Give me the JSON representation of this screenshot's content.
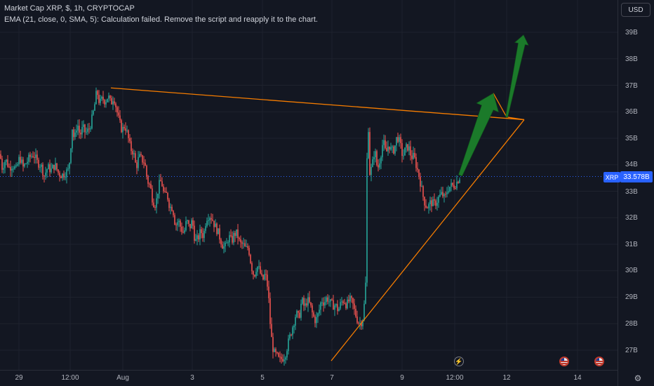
{
  "header": {
    "title": "Market Cap XRP, $, 1h, CRYPTOCAP",
    "indicator": "EMA (21, close, 0, SMA, 5): Calculation failed. Remove the script and reapply it to the chart."
  },
  "price_axis": {
    "currency": "USD",
    "ticks": [
      "39B",
      "38B",
      "37B",
      "36B",
      "35B",
      "34B",
      "33B",
      "32B",
      "31B",
      "30B",
      "29B",
      "28B",
      "27B"
    ],
    "symbol": "XRP",
    "last_price": "33.578B"
  },
  "time_axis": {
    "ticks": [
      "29",
      "12:00",
      "Aug",
      "3",
      "5",
      "7",
      "9",
      "12:00",
      "12",
      "14"
    ]
  },
  "icons": [
    "bolt-icon",
    "us-flag-icon",
    "us-flag-icon",
    "settings-icon"
  ],
  "colors": {
    "background": "#131722",
    "up_candle": "#26a69a",
    "down_candle": "#ef5350",
    "trendline": "#f57c00",
    "projection_arrow": "#1b7a2a",
    "price_tag": "#2962ff"
  },
  "chart_data": {
    "type": "candlestick",
    "title": "Market Cap XRP, $, 1h, CRYPTOCAP",
    "ylim": [
      26.6,
      39.6
    ],
    "y_unit": "B",
    "yticks": [
      27,
      28,
      29,
      30,
      31,
      32,
      33,
      34,
      35,
      36,
      37,
      38,
      39
    ],
    "xticks": [
      "29",
      "12:00",
      "Aug",
      "3",
      "5",
      "7",
      "9",
      "12:00",
      "12",
      "14"
    ],
    "last_price": 33.578,
    "price_path": [
      [
        0,
        34.4
      ],
      [
        3,
        33.9
      ],
      [
        8,
        34.2
      ],
      [
        13,
        33.9
      ],
      [
        18,
        34.0
      ],
      [
        23,
        33.8
      ],
      [
        28,
        34.3
      ],
      [
        33,
        33.9
      ],
      [
        38,
        34.1
      ],
      [
        43,
        34.3
      ],
      [
        48,
        34.4
      ],
      [
        53,
        34.1
      ],
      [
        58,
        34.0
      ],
      [
        63,
        33.6
      ],
      [
        68,
        33.9
      ],
      [
        73,
        33.8
      ],
      [
        78,
        34.0
      ],
      [
        83,
        33.7
      ],
      [
        88,
        33.6
      ],
      [
        93,
        33.7
      ],
      [
        98,
        33.8
      ],
      [
        103,
        35.4
      ],
      [
        106,
        34.9
      ],
      [
        110,
        35.6
      ],
      [
        114,
        35.1
      ],
      [
        118,
        35.4
      ],
      [
        122,
        35.2
      ],
      [
        126,
        35.3
      ],
      [
        130,
        35.6
      ],
      [
        134,
        36.1
      ],
      [
        138,
        36.8
      ],
      [
        142,
        36.3
      ],
      [
        146,
        36.5
      ],
      [
        150,
        36.4
      ],
      [
        154,
        36.6
      ],
      [
        158,
        36.3
      ],
      [
        162,
        36.6
      ],
      [
        166,
        36.1
      ],
      [
        170,
        35.6
      ],
      [
        174,
        35.3
      ],
      [
        178,
        35.5
      ],
      [
        182,
        35.1
      ],
      [
        186,
        34.6
      ],
      [
        190,
        34.5
      ],
      [
        194,
        33.9
      ],
      [
        198,
        34.3
      ],
      [
        202,
        34.2
      ],
      [
        206,
        34.1
      ],
      [
        210,
        33.4
      ],
      [
        214,
        33.2
      ],
      [
        218,
        32.6
      ],
      [
        222,
        32.5
      ],
      [
        226,
        33.2
      ],
      [
        230,
        33.4
      ],
      [
        234,
        32.8
      ],
      [
        238,
        32.9
      ],
      [
        242,
        32.4
      ],
      [
        246,
        32.4
      ],
      [
        250,
        31.7
      ],
      [
        254,
        31.9
      ],
      [
        258,
        31.6
      ],
      [
        262,
        31.4
      ],
      [
        266,
        31.9
      ],
      [
        270,
        31.6
      ],
      [
        274,
        31.9
      ],
      [
        278,
        31.1
      ],
      [
        282,
        31.2
      ],
      [
        286,
        31.5
      ],
      [
        290,
        31.3
      ],
      [
        294,
        32.0
      ],
      [
        298,
        32.1
      ],
      [
        302,
        32.0
      ],
      [
        306,
        31.7
      ],
      [
        310,
        31.5
      ],
      [
        314,
        31.2
      ],
      [
        318,
        30.9
      ],
      [
        322,
        30.9
      ],
      [
        326,
        31.3
      ],
      [
        330,
        31.1
      ],
      [
        334,
        31.4
      ],
      [
        338,
        31.4
      ],
      [
        342,
        31.0
      ],
      [
        346,
        31.0
      ],
      [
        350,
        30.8
      ],
      [
        354,
        30.9
      ],
      [
        358,
        30.2
      ],
      [
        362,
        29.8
      ],
      [
        366,
        30.2
      ],
      [
        370,
        30.0
      ],
      [
        374,
        29.6
      ],
      [
        378,
        29.9
      ],
      [
        382,
        29.3
      ],
      [
        386,
        27.6
      ],
      [
        390,
        26.9
      ],
      [
        394,
        26.8
      ],
      [
        398,
        26.6
      ],
      [
        402,
        26.7
      ],
      [
        406,
        26.8
      ],
      [
        410,
        27.2
      ],
      [
        414,
        27.6
      ],
      [
        418,
        28.0
      ],
      [
        422,
        28.4
      ],
      [
        426,
        28.2
      ],
      [
        430,
        28.9
      ],
      [
        434,
        28.6
      ],
      [
        438,
        28.9
      ],
      [
        442,
        28.7
      ],
      [
        446,
        28.3
      ],
      [
        450,
        28.1
      ],
      [
        454,
        28.4
      ],
      [
        458,
        28.9
      ],
      [
        462,
        28.8
      ],
      [
        466,
        29.0
      ],
      [
        470,
        28.8
      ],
      [
        474,
        28.7
      ],
      [
        478,
        28.7
      ],
      [
        482,
        28.5
      ],
      [
        486,
        28.8
      ],
      [
        490,
        28.9
      ],
      [
        494,
        28.7
      ],
      [
        498,
        28.9
      ],
      [
        502,
        28.8
      ],
      [
        506,
        28.4
      ],
      [
        510,
        28.1
      ],
      [
        514,
        28.0
      ],
      [
        518,
        28.3
      ],
      [
        521,
        29.5
      ],
      [
        523,
        34.2
      ],
      [
        525,
        35.4
      ],
      [
        527,
        33.7
      ],
      [
        530,
        33.9
      ],
      [
        534,
        34.6
      ],
      [
        538,
        33.8
      ],
      [
        542,
        34.3
      ],
      [
        546,
        34.9
      ],
      [
        550,
        34.4
      ],
      [
        554,
        34.8
      ],
      [
        558,
        34.5
      ],
      [
        562,
        34.6
      ],
      [
        566,
        35.1
      ],
      [
        570,
        34.8
      ],
      [
        574,
        34.3
      ],
      [
        578,
        34.6
      ],
      [
        582,
        34.7
      ],
      [
        586,
        34.3
      ],
      [
        590,
        34.3
      ],
      [
        594,
        33.9
      ],
      [
        598,
        33.5
      ],
      [
        602,
        32.9
      ],
      [
        606,
        32.5
      ],
      [
        610,
        32.4
      ],
      [
        614,
        32.6
      ],
      [
        618,
        32.5
      ],
      [
        622,
        32.6
      ],
      [
        626,
        32.8
      ],
      [
        630,
        32.9
      ],
      [
        634,
        32.7
      ],
      [
        638,
        33.1
      ],
      [
        642,
        33.2
      ],
      [
        646,
        33.2
      ],
      [
        650,
        33.3
      ],
      [
        654,
        33.5
      ],
      [
        656,
        33.6
      ]
    ],
    "trendlines": [
      {
        "from": {
          "x": 158,
          "y": 36.9
        },
        "to": {
          "x": 747,
          "y": 35.7
        }
      },
      {
        "from": {
          "x": 472,
          "y": 26.6
        },
        "to": {
          "x": 747,
          "y": 35.7
        }
      }
    ],
    "projection_path": [
      [
        656,
        33.6
      ],
      [
        703,
        36.7
      ],
      [
        722,
        35.8
      ],
      [
        746,
        38.9
      ]
    ]
  }
}
